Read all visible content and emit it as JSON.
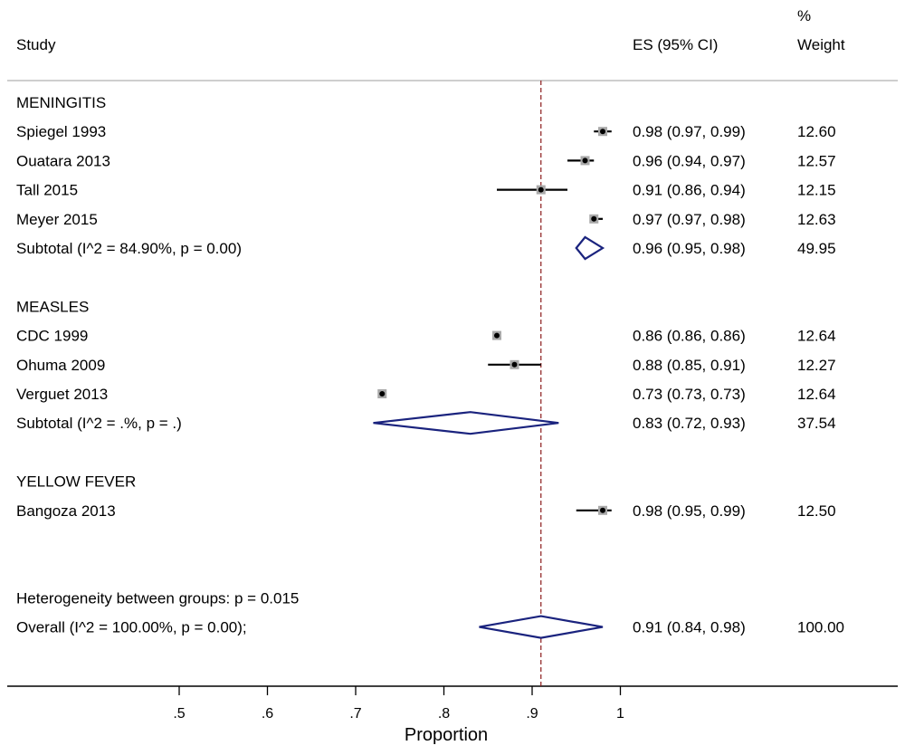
{
  "chart_data": {
    "type": "forest",
    "xlabel": "Proportion",
    "x_ticks": [
      ".5",
      ".6",
      ".7",
      ".8",
      ".9",
      "1"
    ],
    "x_tick_values": [
      0.5,
      0.6,
      0.7,
      0.8,
      0.9,
      1.0
    ],
    "xlim": [
      0.3,
      1.3
    ],
    "reference_line": 0.91,
    "headers": {
      "study": "Study",
      "es": "ES (95% CI)",
      "weight_line1": "%",
      "weight_line2": "Weight"
    },
    "rows": [
      {
        "kind": "group",
        "label": "MENINGITIS"
      },
      {
        "kind": "study",
        "label": "Spiegel 1993",
        "es": 0.98,
        "lo": 0.97,
        "hi": 0.99,
        "es_text": "0.98 (0.97, 0.99)",
        "weight": "12.60"
      },
      {
        "kind": "study",
        "label": "Ouatara 2013",
        "es": 0.96,
        "lo": 0.94,
        "hi": 0.97,
        "es_text": "0.96 (0.94, 0.97)",
        "weight": "12.57"
      },
      {
        "kind": "study",
        "label": "Tall 2015",
        "es": 0.91,
        "lo": 0.86,
        "hi": 0.94,
        "es_text": "0.91 (0.86, 0.94)",
        "weight": "12.15"
      },
      {
        "kind": "study",
        "label": "Meyer 2015",
        "es": 0.97,
        "lo": 0.97,
        "hi": 0.98,
        "es_text": "0.97 (0.97, 0.98)",
        "weight": "12.63"
      },
      {
        "kind": "subtotal",
        "label": "Subtotal  (I^2 = 84.90%, p = 0.00)",
        "es": 0.96,
        "lo": 0.95,
        "hi": 0.98,
        "es_text": "0.96 (0.95, 0.98)",
        "weight": "49.95"
      },
      {
        "kind": "blank"
      },
      {
        "kind": "group",
        "label": "MEASLES"
      },
      {
        "kind": "study",
        "label": "CDC 1999",
        "es": 0.86,
        "lo": 0.86,
        "hi": 0.86,
        "es_text": "0.86 (0.86, 0.86)",
        "weight": "12.64"
      },
      {
        "kind": "study",
        "label": "Ohuma 2009",
        "es": 0.88,
        "lo": 0.85,
        "hi": 0.91,
        "es_text": "0.88 (0.85, 0.91)",
        "weight": "12.27"
      },
      {
        "kind": "study",
        "label": "Verguet 2013",
        "es": 0.73,
        "lo": 0.73,
        "hi": 0.73,
        "es_text": "0.73 (0.73, 0.73)",
        "weight": "12.64"
      },
      {
        "kind": "subtotal",
        "label": "Subtotal  (I^2 = .%, p = .)",
        "es": 0.83,
        "lo": 0.72,
        "hi": 0.93,
        "es_text": "0.83 (0.72, 0.93)",
        "weight": "37.54"
      },
      {
        "kind": "blank"
      },
      {
        "kind": "group",
        "label": "YELLOW FEVER"
      },
      {
        "kind": "study",
        "label": "Bangoza 2013",
        "es": 0.98,
        "lo": 0.95,
        "hi": 0.99,
        "es_text": "0.98 (0.95, 0.99)",
        "weight": "12.50"
      },
      {
        "kind": "blank"
      },
      {
        "kind": "blank"
      },
      {
        "kind": "note",
        "label": "Heterogeneity between groups: p = 0.015"
      },
      {
        "kind": "overall",
        "label": "Overall  (I^2 = 100.00%, p = 0.00);",
        "es": 0.91,
        "lo": 0.84,
        "hi": 0.98,
        "es_text": "0.91 (0.84, 0.98)",
        "weight": "100.00"
      }
    ],
    "colors": {
      "diamond": "#1a237e",
      "reference_line": "#8b1a1a",
      "ci_line": "#000000",
      "weight_box": "#a9a9a9",
      "rule": "#bdbdbd"
    }
  }
}
